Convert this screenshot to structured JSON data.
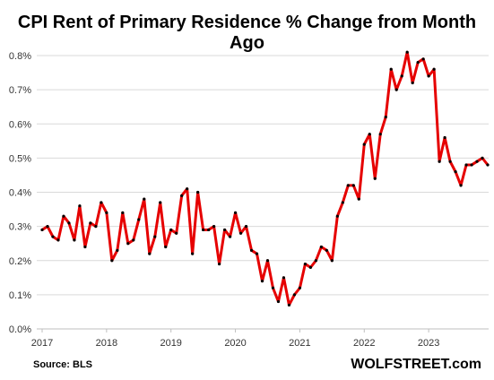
{
  "title": "CPI Rent of Primary Residence % Change from Month Ago",
  "source": "Source: BLS",
  "brand": "WOLFSTREET.com",
  "chart_data": {
    "type": "line",
    "title": "CPI Rent of Primary Residence % Change from Month Ago",
    "xlabel": "",
    "ylabel": "",
    "ylim": [
      0.0,
      0.8
    ],
    "y_ticks": [
      {
        "value": 0.0,
        "label": "0.0%"
      },
      {
        "value": 0.1,
        "label": "0.1%"
      },
      {
        "value": 0.2,
        "label": "0.2%"
      },
      {
        "value": 0.3,
        "label": "0.3%"
      },
      {
        "value": 0.4,
        "label": "0.4%"
      },
      {
        "value": 0.5,
        "label": "0.5%"
      },
      {
        "value": 0.6,
        "label": "0.6%"
      },
      {
        "value": 0.7,
        "label": "0.7%"
      },
      {
        "value": 0.8,
        "label": "0.8%"
      }
    ],
    "x_ticks": [
      "2017",
      "2018",
      "2019",
      "2020",
      "2021",
      "2022",
      "2023"
    ],
    "grid": "horizontal",
    "line_color": "#e60000",
    "marker_color": "#000000",
    "series": [
      {
        "values": [
          0.29,
          0.3,
          0.27,
          0.26,
          0.33,
          0.31,
          0.26,
          0.36,
          0.24,
          0.31,
          0.3,
          0.37,
          0.34,
          0.2,
          0.23,
          0.34,
          0.25,
          0.26,
          0.32,
          0.38,
          0.22,
          0.27,
          0.37,
          0.24,
          0.29,
          0.28,
          0.39,
          0.41,
          0.22,
          0.4,
          0.29,
          0.29,
          0.3,
          0.19,
          0.29,
          0.27,
          0.34,
          0.28,
          0.3,
          0.23,
          0.22,
          0.14,
          0.2,
          0.12,
          0.08,
          0.15,
          0.07,
          0.1,
          0.12,
          0.19,
          0.18,
          0.2,
          0.24,
          0.23,
          0.2,
          0.33,
          0.37,
          0.42,
          0.42,
          0.38,
          0.54,
          0.57,
          0.44,
          0.57,
          0.62,
          0.76,
          0.7,
          0.74,
          0.81,
          0.72,
          0.78,
          0.79,
          0.74,
          0.76,
          0.49,
          0.56,
          0.49,
          0.46,
          0.42,
          0.48,
          0.48,
          0.49,
          0.5,
          0.48
        ]
      }
    ]
  }
}
